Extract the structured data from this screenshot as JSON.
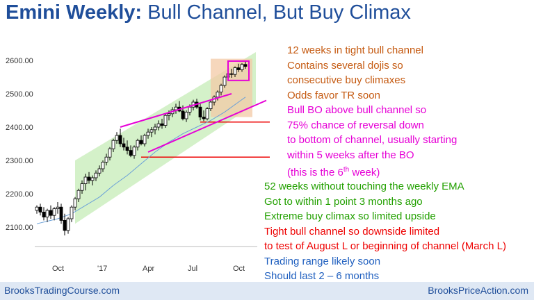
{
  "title": {
    "bold": "Emini Weekly:",
    "rest": " Bull Channel, But Buy Climax"
  },
  "footer": {
    "left": "BrooksTradingCourse.com",
    "right": "BrooksPriceAction.com"
  },
  "colors": {
    "title": "#1f4e9a",
    "orange": "#c55a11",
    "magenta": "#e600d6",
    "green": "#22a000",
    "red": "#ee0000",
    "blue": "#1f5fbf"
  },
  "annotations_top": [
    {
      "text": "12 weeks in tight bull channel",
      "color": "#c55a11"
    },
    {
      "text": "Contains several dojis so",
      "color": "#c55a11"
    },
    {
      "text": "consecutive buy climaxes",
      "color": "#c55a11"
    },
    {
      "text": "Odds favor TR soon",
      "color": "#c55a11"
    },
    {
      "text": "Bull BO above bull channel so",
      "color": "#e600d6"
    },
    {
      "text": "75% chance of reversal down",
      "color": "#e600d6"
    },
    {
      "text": "to bottom of channel, usually starting",
      "color": "#e600d6"
    },
    {
      "text": "within 5 weeks after the BO",
      "color": "#e600d6"
    },
    {
      "text": "(this is the 6",
      "sup": "th",
      "after": " week)",
      "color": "#e600d6"
    }
  ],
  "annotations_bottom": [
    {
      "text": "52 weeks without touching the weekly EMA",
      "color": "#22a000"
    },
    {
      "text": "Got to within 1 point 3 months ago",
      "color": "#22a000"
    },
    {
      "text": "Extreme buy climax so limited upside",
      "color": "#22a000"
    },
    {
      "text": "Tight bull channel so downside limited",
      "color": "#ee0000"
    },
    {
      "text": "to test of August L or beginning of channel (March L)",
      "color": "#ee0000"
    },
    {
      "text": "Trading range likely soon",
      "color": "#1f5fbf"
    },
    {
      "text": "Should last 2 – 6 months",
      "color": "#1f5fbf"
    }
  ],
  "chart_data": {
    "type": "candlestick",
    "y_ticks": [
      "2100.00",
      "2200.00",
      "2300.00",
      "2400.00",
      "2500.00",
      "2600.00"
    ],
    "y_tick_values": [
      2100,
      2200,
      2300,
      2400,
      2500,
      2600
    ],
    "x_ticks": [
      "Oct",
      "'17",
      "Apr",
      "Jul",
      "Oct"
    ],
    "x_tick_weeks": [
      6,
      19,
      32,
      45,
      58
    ],
    "ylim": [
      2070,
      2640
    ],
    "weeks": 63,
    "candles": [
      [
        2150,
        2165,
        2140,
        2160
      ],
      [
        2160,
        2170,
        2135,
        2145
      ],
      [
        2145,
        2160,
        2120,
        2130
      ],
      [
        2130,
        2155,
        2115,
        2150
      ],
      [
        2150,
        2165,
        2125,
        2135
      ],
      [
        2135,
        2160,
        2120,
        2155
      ],
      [
        2155,
        2175,
        2140,
        2160
      ],
      [
        2160,
        2170,
        2110,
        2120
      ],
      [
        2120,
        2140,
        2075,
        2090
      ],
      [
        2090,
        2130,
        2080,
        2125
      ],
      [
        2125,
        2165,
        2115,
        2160
      ],
      [
        2160,
        2190,
        2150,
        2185
      ],
      [
        2185,
        2215,
        2175,
        2210
      ],
      [
        2210,
        2240,
        2200,
        2230
      ],
      [
        2230,
        2260,
        2210,
        2250
      ],
      [
        2250,
        2265,
        2230,
        2240
      ],
      [
        2240,
        2255,
        2225,
        2248
      ],
      [
        2248,
        2270,
        2238,
        2262
      ],
      [
        2262,
        2285,
        2252,
        2275
      ],
      [
        2275,
        2300,
        2265,
        2295
      ],
      [
        2295,
        2320,
        2285,
        2310
      ],
      [
        2310,
        2340,
        2300,
        2335
      ],
      [
        2335,
        2365,
        2325,
        2360
      ],
      [
        2360,
        2385,
        2350,
        2375
      ],
      [
        2375,
        2395,
        2340,
        2350
      ],
      [
        2350,
        2368,
        2330,
        2340
      ],
      [
        2340,
        2360,
        2318,
        2330
      ],
      [
        2330,
        2345,
        2310,
        2315
      ],
      [
        2315,
        2345,
        2305,
        2340
      ],
      [
        2340,
        2365,
        2330,
        2360
      ],
      [
        2360,
        2375,
        2345,
        2350
      ],
      [
        2350,
        2380,
        2342,
        2375
      ],
      [
        2375,
        2395,
        2365,
        2385
      ],
      [
        2385,
        2400,
        2370,
        2392
      ],
      [
        2392,
        2410,
        2378,
        2400
      ],
      [
        2400,
        2420,
        2390,
        2410
      ],
      [
        2410,
        2425,
        2395,
        2405
      ],
      [
        2405,
        2440,
        2398,
        2435
      ],
      [
        2435,
        2450,
        2420,
        2440
      ],
      [
        2440,
        2460,
        2430,
        2452
      ],
      [
        2452,
        2470,
        2440,
        2460
      ],
      [
        2460,
        2478,
        2445,
        2448
      ],
      [
        2448,
        2465,
        2420,
        2425
      ],
      [
        2425,
        2450,
        2415,
        2445
      ],
      [
        2445,
        2468,
        2435,
        2460
      ],
      [
        2460,
        2482,
        2450,
        2475
      ],
      [
        2475,
        2485,
        2455,
        2460
      ],
      [
        2460,
        2472,
        2420,
        2430
      ],
      [
        2430,
        2450,
        2418,
        2425
      ],
      [
        2425,
        2460,
        2420,
        2455
      ],
      [
        2455,
        2480,
        2448,
        2475
      ],
      [
        2475,
        2495,
        2465,
        2490
      ],
      [
        2490,
        2510,
        2480,
        2505
      ],
      [
        2505,
        2530,
        2495,
        2525
      ],
      [
        2525,
        2555,
        2518,
        2550
      ],
      [
        2550,
        2568,
        2540,
        2560
      ],
      [
        2560,
        2575,
        2548,
        2558
      ],
      [
        2558,
        2582,
        2550,
        2578
      ],
      [
        2578,
        2590,
        2565,
        2572
      ],
      [
        2572,
        2592,
        2566,
        2588
      ],
      [
        2588,
        2598,
        2575,
        2582
      ]
    ],
    "ema": [
      [
        0,
        2110
      ],
      [
        6,
        2125
      ],
      [
        10,
        2140
      ],
      [
        14,
        2165
      ],
      [
        18,
        2190
      ],
      [
        22,
        2225
      ],
      [
        26,
        2255
      ],
      [
        30,
        2290
      ],
      [
        34,
        2325
      ],
      [
        38,
        2355
      ],
      [
        42,
        2380
      ],
      [
        46,
        2400
      ],
      [
        50,
        2420
      ],
      [
        54,
        2445
      ],
      [
        58,
        2475
      ],
      [
        60,
        2490
      ]
    ],
    "channel_zone": {
      "lower_start": [
        11,
        2110
      ],
      "lower_end": [
        63,
        2470
      ],
      "upper_start": [
        11,
        2300
      ],
      "upper_end": [
        63,
        2625
      ]
    },
    "tight_channel": {
      "lower_start": [
        32,
        2325
      ],
      "lower_end": [
        66,
        2480
      ],
      "upper_start": [
        24,
        2400
      ],
      "upper_end": [
        56,
        2500
      ]
    },
    "red_lines": [
      {
        "y": 2415,
        "from_week": 47
      },
      {
        "y": 2310,
        "from_week": 30
      }
    ],
    "climax_box": {
      "from_week": 50,
      "to_week": 62,
      "low": 2430,
      "high": 2605
    },
    "highlight_box": {
      "from_week": 55,
      "to_week": 61,
      "low": 2540,
      "high": 2598
    }
  }
}
